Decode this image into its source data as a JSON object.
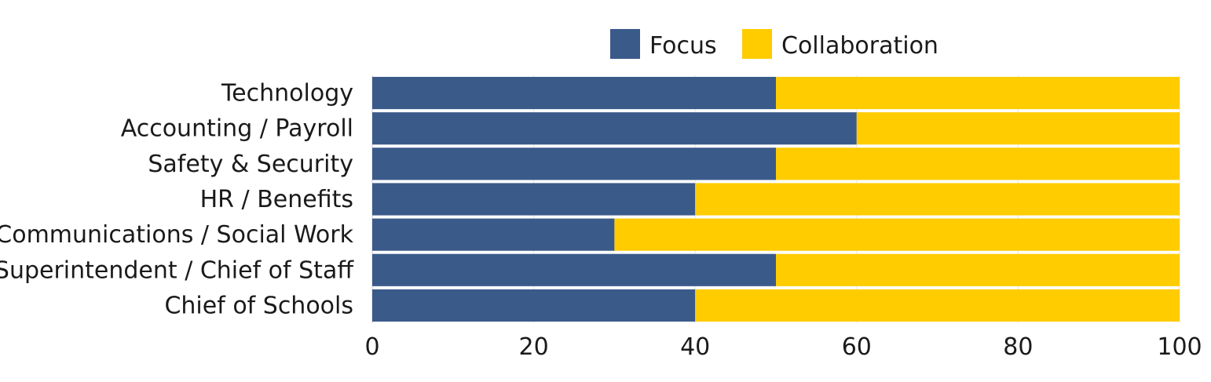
{
  "chart_data": {
    "type": "bar",
    "orientation": "horizontal",
    "stacked": true,
    "categories": [
      "Technology",
      "Accounting / Payroll",
      "Safety & Security",
      "HR / Benefits",
      "Communications / Social Work",
      "Superintendent / Chief of Staff",
      "Chief of Schools"
    ],
    "series": [
      {
        "name": "Focus",
        "color": "#3a5a8a",
        "values": [
          50,
          60,
          50,
          40,
          30,
          50,
          40
        ]
      },
      {
        "name": "Collaboration",
        "color": "#ffcc00",
        "values": [
          50,
          40,
          50,
          60,
          70,
          50,
          60
        ]
      }
    ],
    "xlim": [
      0,
      100
    ],
    "xticks": [
      0,
      20,
      40,
      60,
      80,
      100
    ],
    "title": "",
    "xlabel": "",
    "ylabel": "",
    "grid": true,
    "legend_position": "top"
  }
}
